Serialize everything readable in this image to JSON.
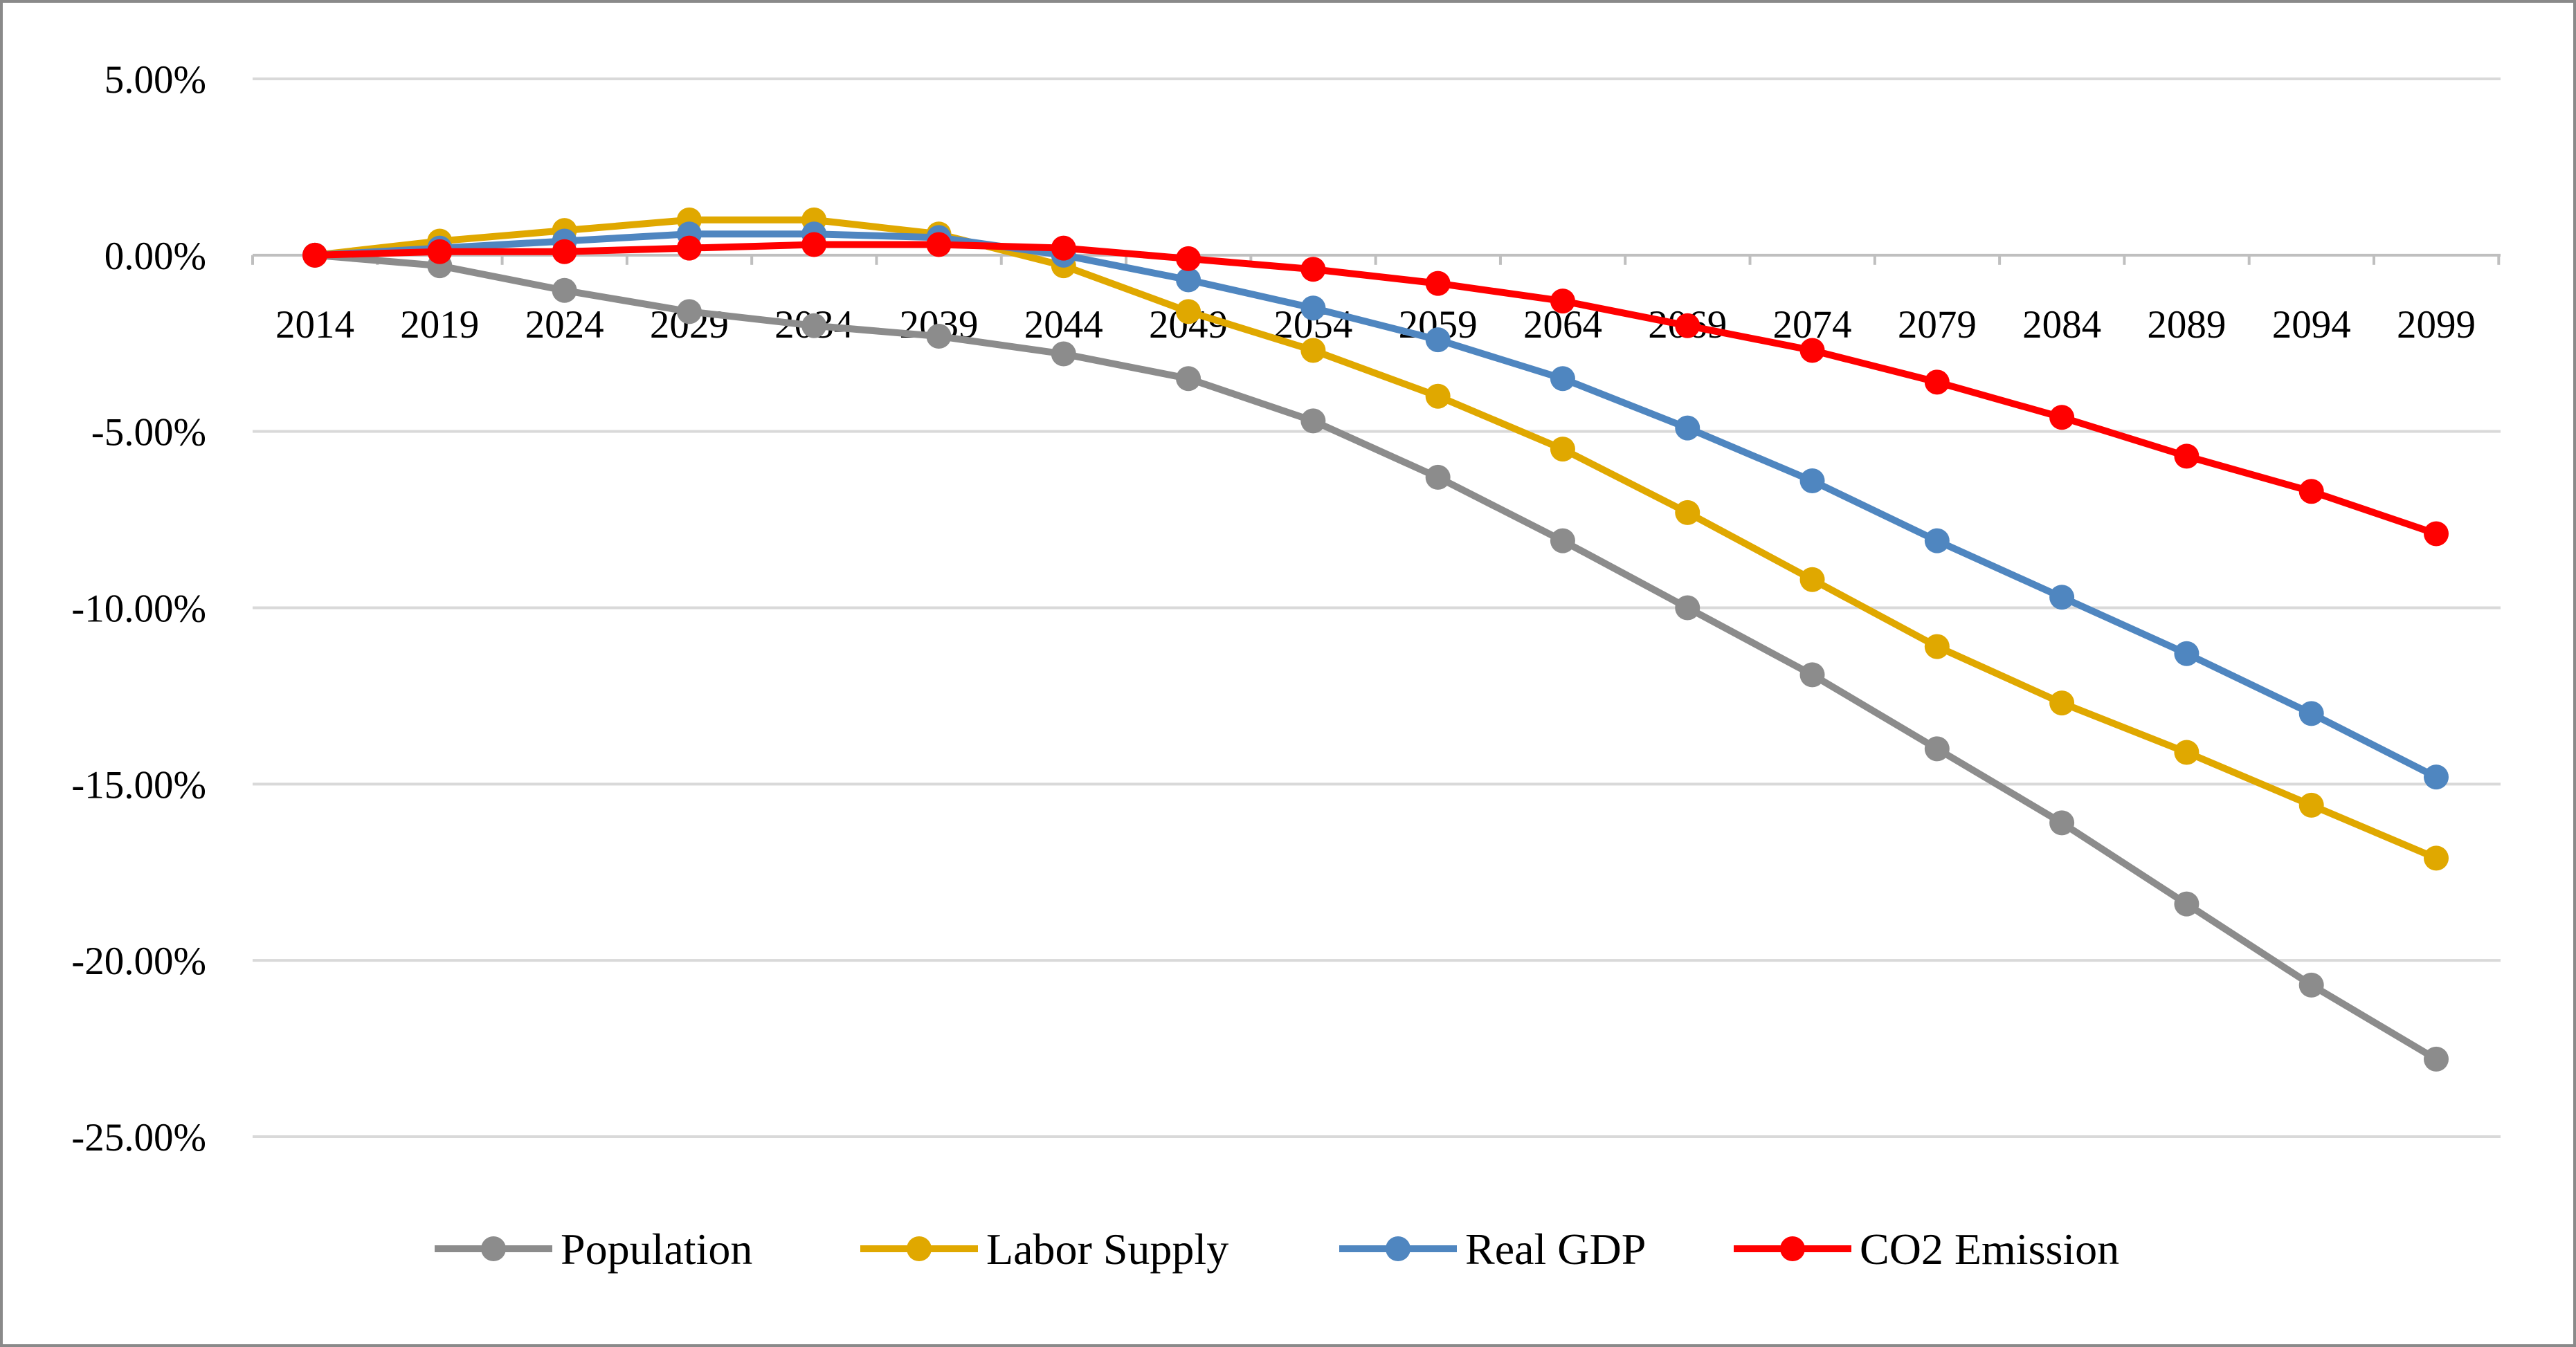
{
  "chart_data": {
    "type": "line",
    "title": "",
    "xlabel": "",
    "ylabel": "",
    "categories": [
      "2014",
      "2019",
      "2024",
      "2029",
      "2034",
      "2039",
      "2044",
      "2049",
      "2054",
      "2059",
      "2064",
      "2069",
      "2074",
      "2079",
      "2084",
      "2089",
      "2094",
      "2099"
    ],
    "ylim": [
      -25,
      5
    ],
    "yticks": [
      5,
      0,
      -5,
      -10,
      -15,
      -20,
      -25
    ],
    "ytick_labels": [
      "5.00%",
      "0.00%",
      "-5.00%",
      "-10.00%",
      "-15.00%",
      "-20.00%",
      "-25.00%"
    ],
    "grid": true,
    "legend_position": "bottom",
    "series": [
      {
        "name": "Population",
        "color": "#8c8c8c",
        "values": [
          0.0,
          -0.3,
          -1.0,
          -1.6,
          -2.0,
          -2.3,
          -2.8,
          -3.5,
          -4.7,
          -6.3,
          -8.1,
          -10.0,
          -11.9,
          -14.0,
          -16.1,
          -18.4,
          -20.7,
          -22.8
        ]
      },
      {
        "name": "Labor Supply",
        "color": "#e0a800",
        "values": [
          0.0,
          0.4,
          0.7,
          1.0,
          1.0,
          0.6,
          -0.3,
          -1.6,
          -2.7,
          -4.0,
          -5.5,
          -7.3,
          -9.2,
          -11.1,
          -12.7,
          -14.1,
          -15.6,
          -17.1
        ]
      },
      {
        "name": "Real GDP",
        "color": "#4f86c0",
        "values": [
          0.0,
          0.2,
          0.4,
          0.6,
          0.6,
          0.5,
          0.0,
          -0.7,
          -1.5,
          -2.4,
          -3.5,
          -4.9,
          -6.4,
          -8.1,
          -9.7,
          -11.3,
          -13.0,
          -14.8
        ]
      },
      {
        "name": "CO2 Emission",
        "color": "#ff0000",
        "values": [
          0.0,
          0.1,
          0.1,
          0.2,
          0.3,
          0.3,
          0.2,
          -0.1,
          -0.4,
          -0.8,
          -1.3,
          -2.0,
          -2.7,
          -3.6,
          -4.6,
          -5.7,
          -6.7,
          -7.9
        ]
      }
    ]
  }
}
